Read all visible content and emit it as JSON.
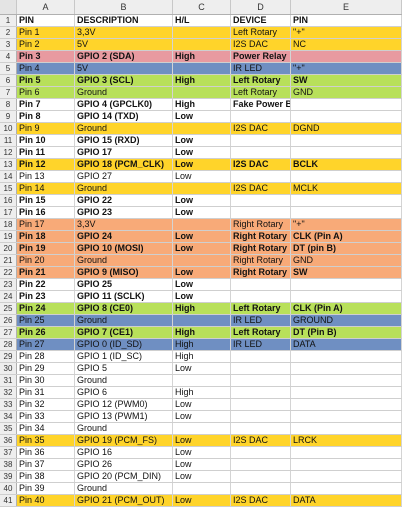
{
  "columns": [
    "A",
    "B",
    "C",
    "D",
    "E"
  ],
  "colors": {
    "yellow": "#ffd42a",
    "green": "#b8e05a",
    "pink": "#e89aa0",
    "blue": "#6f8fc2",
    "orange": "#f8aa78",
    "white": "#ffffff"
  },
  "rows": [
    {
      "n": "1",
      "cells": [
        "PIN",
        "DESCRIPTION",
        "H/L",
        "DEVICE",
        "PIN"
      ],
      "color": "white",
      "bold": true
    },
    {
      "n": "2",
      "cells": [
        "Pin 1",
        "3,3V",
        "",
        "Left Rotary",
        "\"+\""
      ],
      "color": "yellow",
      "bold": false
    },
    {
      "n": "3",
      "cells": [
        "Pin 2",
        "5V",
        "",
        "I2S DAC",
        "NC"
      ],
      "color": "yellow",
      "bold": false
    },
    {
      "n": "4",
      "cells": [
        "Pin 3",
        "GPIO 2 (SDA)",
        "High",
        "Power Relay",
        ""
      ],
      "color": "pink",
      "bold": true
    },
    {
      "n": "5",
      "cells": [
        "Pin 4",
        "5V",
        "",
        "IR LED",
        "\"+\""
      ],
      "color": "blue",
      "bold": false
    },
    {
      "n": "6",
      "cells": [
        "Pin 5",
        "GPIO 3 (SCL)",
        "High",
        "Left Rotary",
        "SW"
      ],
      "color": "green",
      "bold": true
    },
    {
      "n": "7",
      "cells": [
        "Pin 6",
        "Ground",
        "",
        "Left Rotary",
        "GND"
      ],
      "color": "green",
      "bold": false
    },
    {
      "n": "8",
      "cells": [
        "Pin 7",
        "GPIO 4 (GPCLK0)",
        "High",
        "Fake Power Button",
        ""
      ],
      "color": "white",
      "bold": true
    },
    {
      "n": "9",
      "cells": [
        "Pin 8",
        "GPIO 14 (TXD)",
        "Low",
        "",
        ""
      ],
      "color": "white",
      "bold": true
    },
    {
      "n": "10",
      "cells": [
        "Pin 9",
        "Ground",
        "",
        "I2S DAC",
        "DGND"
      ],
      "color": "yellow",
      "bold": false
    },
    {
      "n": "11",
      "cells": [
        "Pin 10",
        "GPIO 15 (RXD)",
        "Low",
        "",
        ""
      ],
      "color": "white",
      "bold": true
    },
    {
      "n": "12",
      "cells": [
        "Pin 11",
        "GPIO 17",
        "Low",
        "",
        ""
      ],
      "color": "white",
      "bold": true
    },
    {
      "n": "13",
      "cells": [
        "Pin 12",
        "GPIO 18 (PCM_CLK)",
        "Low",
        "I2S DAC",
        "BCLK"
      ],
      "color": "yellow",
      "bold": true
    },
    {
      "n": "14",
      "cells": [
        "Pin 13",
        "GPIO 27",
        "Low",
        "",
        ""
      ],
      "color": "white",
      "bold": false
    },
    {
      "n": "15",
      "cells": [
        "Pin 14",
        "Ground",
        "",
        "I2S DAC",
        "MCLK"
      ],
      "color": "yellow",
      "bold": false
    },
    {
      "n": "16",
      "cells": [
        "Pin 15",
        "GPIO 22",
        "Low",
        "",
        ""
      ],
      "color": "white",
      "bold": true
    },
    {
      "n": "17",
      "cells": [
        "Pin 16",
        "GPIO 23",
        "Low",
        "",
        ""
      ],
      "color": "white",
      "bold": true
    },
    {
      "n": "18",
      "cells": [
        "Pin 17",
        "3,3V",
        "",
        "Right Rotary",
        "\"+\""
      ],
      "color": "orange",
      "bold": false
    },
    {
      "n": "19",
      "cells": [
        "Pin 18",
        "GPIO 24",
        "Low",
        "Right Rotary",
        "CLK (Pin A)"
      ],
      "color": "orange",
      "bold": true
    },
    {
      "n": "20",
      "cells": [
        "Pin 19",
        "GPIO 10 (MOSI)",
        "Low",
        "Right Rotary",
        "DT (pin B)"
      ],
      "color": "orange",
      "bold": true
    },
    {
      "n": "21",
      "cells": [
        "Pin 20",
        "Ground",
        "",
        "Right Rotary",
        "GND"
      ],
      "color": "orange",
      "bold": false
    },
    {
      "n": "22",
      "cells": [
        "Pin 21",
        "GPIO 9 (MISO)",
        "Low",
        "Right Rotary",
        "SW"
      ],
      "color": "orange",
      "bold": true
    },
    {
      "n": "23",
      "cells": [
        "Pin 22",
        "GPIO 25",
        "Low",
        "",
        ""
      ],
      "color": "white",
      "bold": true
    },
    {
      "n": "24",
      "cells": [
        "Pin 23",
        "GPIO 11 (SCLK)",
        "Low",
        "",
        ""
      ],
      "color": "white",
      "bold": true
    },
    {
      "n": "25",
      "cells": [
        "Pin 24",
        "GPIO 8 (CE0)",
        "High",
        "Left Rotary",
        "CLK (Pin A)"
      ],
      "color": "green",
      "bold": true
    },
    {
      "n": "26",
      "cells": [
        "Pin 25",
        "Ground",
        "",
        "IR LED",
        "GROUND"
      ],
      "color": "blue",
      "bold": false
    },
    {
      "n": "27",
      "cells": [
        "Pin 26",
        "GPIO 7 (CE1)",
        "High",
        "Left Rotary",
        "DT (Pin B)"
      ],
      "color": "green",
      "bold": true
    },
    {
      "n": "28",
      "cells": [
        "Pin 27",
        "GPIO 0 (ID_SD)",
        "High",
        "IR LED",
        "DATA"
      ],
      "color": "blue",
      "bold": false
    },
    {
      "n": "29",
      "cells": [
        "Pin 28",
        "GPIO 1 (ID_SC)",
        "High",
        "",
        ""
      ],
      "color": "white",
      "bold": false
    },
    {
      "n": "30",
      "cells": [
        "Pin 29",
        "GPIO 5",
        "Low",
        "",
        ""
      ],
      "color": "white",
      "bold": false
    },
    {
      "n": "31",
      "cells": [
        "Pin 30",
        "Ground",
        "",
        "",
        ""
      ],
      "color": "white",
      "bold": false
    },
    {
      "n": "32",
      "cells": [
        "Pin 31",
        "GPIO 6",
        "High",
        "",
        ""
      ],
      "color": "white",
      "bold": false
    },
    {
      "n": "33",
      "cells": [
        "Pin 32",
        "GPIO 12 (PWM0)",
        "Low",
        "",
        ""
      ],
      "color": "white",
      "bold": false
    },
    {
      "n": "34",
      "cells": [
        "Pin 33",
        "GPIO 13 (PWM1)",
        "Low",
        "",
        ""
      ],
      "color": "white",
      "bold": false
    },
    {
      "n": "35",
      "cells": [
        "Pin 34",
        "Ground",
        "",
        "",
        ""
      ],
      "color": "white",
      "bold": false
    },
    {
      "n": "36",
      "cells": [
        "Pin 35",
        "GPIO 19 (PCM_FS)",
        "Low",
        "I2S DAC",
        "LRCK"
      ],
      "color": "yellow",
      "bold": false
    },
    {
      "n": "37",
      "cells": [
        "Pin 36",
        "GPIO 16",
        "Low",
        "",
        ""
      ],
      "color": "white",
      "bold": false
    },
    {
      "n": "38",
      "cells": [
        "Pin 37",
        "GPIO 26",
        "Low",
        "",
        ""
      ],
      "color": "white",
      "bold": false
    },
    {
      "n": "39",
      "cells": [
        "Pin 38",
        "GPIO 20 (PCM_DIN)",
        "Low",
        "",
        ""
      ],
      "color": "white",
      "bold": false
    },
    {
      "n": "40",
      "cells": [
        "Pin 39",
        "Ground",
        "",
        "",
        ""
      ],
      "color": "white",
      "bold": false
    },
    {
      "n": "41",
      "cells": [
        "Pin 40",
        "GPIO 21 (PCM_OUT)",
        "Low",
        "I2S DAC",
        "DATA"
      ],
      "color": "yellow",
      "bold": false
    }
  ]
}
